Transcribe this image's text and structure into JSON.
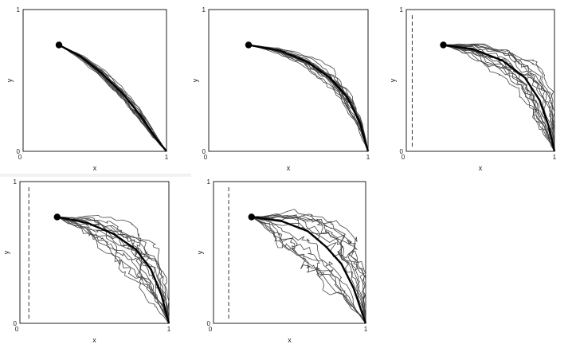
{
  "chart_data": [
    {
      "type": "line",
      "xlabel": "x",
      "ylabel": "y",
      "xlim": [
        0,
        1
      ],
      "ylim": [
        0,
        1
      ],
      "xticks": [
        "0",
        "1"
      ],
      "yticks": [
        "0",
        "1"
      ],
      "start_point": [
        0.25,
        0.75
      ],
      "end_point": [
        1.0,
        0.0
      ],
      "mean_path": [
        [
          0.25,
          0.75
        ],
        [
          0.4,
          0.67
        ],
        [
          0.55,
          0.55
        ],
        [
          0.7,
          0.4
        ],
        [
          0.82,
          0.25
        ],
        [
          0.92,
          0.1
        ],
        [
          1.0,
          0.0
        ]
      ],
      "n_trajectories": 16,
      "noise": 0.012,
      "dashed_line_x": null,
      "grid": false
    },
    {
      "type": "line",
      "xlabel": "x",
      "ylabel": "y",
      "xlim": [
        0,
        1
      ],
      "ylim": [
        0,
        1
      ],
      "xticks": [
        "0",
        "1"
      ],
      "yticks": [
        "0",
        "1"
      ],
      "start_point": [
        0.25,
        0.75
      ],
      "end_point": [
        1.0,
        0.0
      ],
      "mean_path": [
        [
          0.25,
          0.75
        ],
        [
          0.45,
          0.71
        ],
        [
          0.62,
          0.63
        ],
        [
          0.76,
          0.52
        ],
        [
          0.87,
          0.38
        ],
        [
          0.95,
          0.2
        ],
        [
          1.0,
          0.0
        ]
      ],
      "n_trajectories": 16,
      "noise": 0.02,
      "dashed_line_x": null,
      "grid": false
    },
    {
      "type": "line",
      "xlabel": "x",
      "ylabel": "y",
      "xlim": [
        0,
        1
      ],
      "ylim": [
        0,
        1
      ],
      "xticks": [
        "0",
        "1"
      ],
      "yticks": [
        "0",
        "1"
      ],
      "start_point": [
        0.25,
        0.75
      ],
      "end_point": [
        1.0,
        0.0
      ],
      "mean_path": [
        [
          0.25,
          0.75
        ],
        [
          0.45,
          0.72
        ],
        [
          0.65,
          0.64
        ],
        [
          0.8,
          0.52
        ],
        [
          0.9,
          0.36
        ],
        [
          0.96,
          0.18
        ],
        [
          1.0,
          0.0
        ]
      ],
      "n_trajectories": 16,
      "noise": 0.04,
      "dashed_line_x": 0.04,
      "grid": false
    },
    {
      "type": "line",
      "xlabel": "x",
      "ylabel": "y",
      "xlim": [
        0,
        1
      ],
      "ylim": [
        0,
        1
      ],
      "xticks": [
        "0",
        "1"
      ],
      "yticks": [
        "0",
        "1"
      ],
      "start_point": [
        0.25,
        0.75
      ],
      "end_point": [
        1.0,
        0.0
      ],
      "mean_path": [
        [
          0.25,
          0.75
        ],
        [
          0.45,
          0.71
        ],
        [
          0.63,
          0.63
        ],
        [
          0.78,
          0.52
        ],
        [
          0.88,
          0.38
        ],
        [
          0.95,
          0.2
        ],
        [
          1.0,
          0.0
        ]
      ],
      "n_trajectories": 14,
      "noise": 0.055,
      "dashed_line_x": 0.06,
      "grid": false
    },
    {
      "type": "line",
      "xlabel": "x",
      "ylabel": "y",
      "xlim": [
        0,
        1
      ],
      "ylim": [
        0,
        1
      ],
      "xticks": [
        "0",
        "1"
      ],
      "yticks": [
        "0",
        "1"
      ],
      "start_point": [
        0.25,
        0.75
      ],
      "end_point": [
        1.0,
        0.0
      ],
      "mean_path": [
        [
          0.25,
          0.75
        ],
        [
          0.45,
          0.72
        ],
        [
          0.62,
          0.65
        ],
        [
          0.74,
          0.54
        ],
        [
          0.84,
          0.42
        ],
        [
          0.92,
          0.25
        ],
        [
          1.0,
          0.0
        ]
      ],
      "n_trajectories": 14,
      "noise": 0.065,
      "dashed_line_x": 0.1,
      "grid": false
    }
  ]
}
